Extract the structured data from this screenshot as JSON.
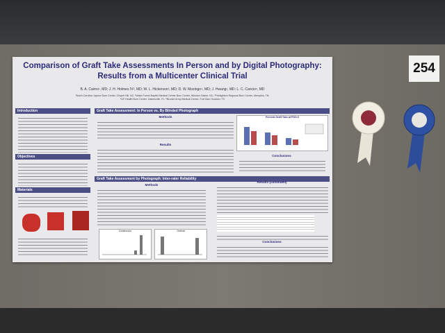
{
  "board_number": "254",
  "poster": {
    "title": [
      "Comparison of Graft Take Assessments In Person and by Digital Photography:",
      "Results from a Multicenter Clinical Trial"
    ],
    "authors": "B. A. Cairns¹, MD; J. H. Holmes IV², MD; W. L. Hickerson³, MD; D. W. Mozingo⁴, MD; J. Hwang¹, MD; L. C. Cancio⁵, MD",
    "affiliations": [
      "¹North Carolina Jaycee Burn Center, Chapel Hill, NC; ²Wake Forest Baptist Medical Center Burn Center, Winston-Salem, NC; ³Firefighters Regional Burn Center, Memphis, TN;",
      "⁴UF Health Burn Center, Gainesville, FL; ⁵Brooke Army Medical Center, Fort Sam Houston, TX"
    ],
    "sections": [
      "Introduction",
      "Objectives",
      "Materials",
      "Graft Take Assessment: In Person vs. By Blinded Photograph",
      "Graft Take Assessment by Photograph: Inter-rater Reliability"
    ],
    "subheadings": [
      "Methods",
      "Results",
      "Conclusions",
      "Results (continued)"
    ],
    "chart_title": "Percent Graft Take at POD 6",
    "histograms": [
      "Continuous",
      "Ordinal"
    ]
  }
}
